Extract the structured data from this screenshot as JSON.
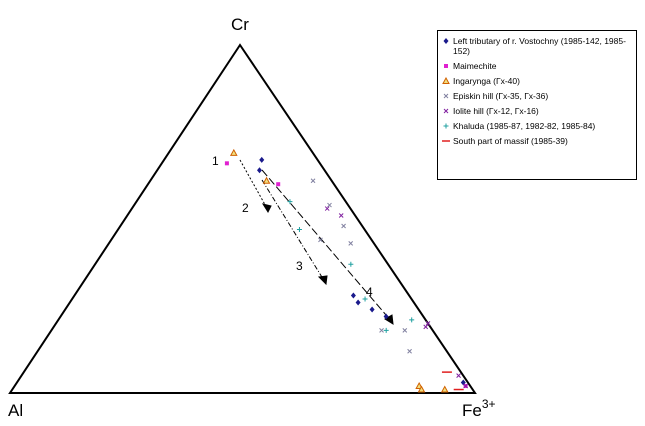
{
  "chart_data": {
    "type": "ternary",
    "vertices": {
      "top": "Cr",
      "left": "Al",
      "right": "Fe",
      "right_sup": "3+"
    },
    "annotations": [
      "1",
      "2",
      "3",
      "4"
    ],
    "series": [
      {
        "name": "Left tributary of r. Vostochny (1985-142, 1985-152)",
        "color": "#1a1a8c",
        "marker": "diamond",
        "cr": [
          67,
          64,
          28,
          26,
          24,
          22,
          3
        ],
        "al": [
          12,
          14,
          12,
          12,
          10,
          8,
          1
        ],
        "fe": [
          21,
          22,
          60,
          62,
          66,
          70,
          96
        ]
      },
      {
        "name": "Maimechite",
        "color": "#e020d0",
        "marker": "square",
        "cr": [
          66,
          60,
          2
        ],
        "al": [
          20,
          12,
          1
        ],
        "fe": [
          14,
          28,
          97
        ]
      },
      {
        "name": "Ingarynga (Гх-40)",
        "color": "#d06000",
        "marker": "triangle",
        "cr": [
          69,
          61,
          2,
          1,
          1
        ],
        "al": [
          17,
          14,
          11,
          11,
          6
        ],
        "fe": [
          14,
          25,
          87,
          88,
          93
        ]
      },
      {
        "name": "Episkin hill (Гх-35, Гх-36)",
        "color": "#8080a0",
        "marker": "x",
        "cr": [
          61,
          54,
          48,
          44,
          43,
          18,
          12,
          18
        ],
        "al": [
          4,
          4,
          4,
          11,
          5,
          11,
          8,
          6
        ],
        "fe": [
          35,
          42,
          48,
          45,
          52,
          71,
          80,
          76
        ]
      },
      {
        "name": "Iolite hill (Гх-12, Гх-16)",
        "color": "#8020a0",
        "marker": "x",
        "cr": [
          53,
          51,
          20,
          19,
          5,
          2
        ],
        "al": [
          5,
          3,
          0,
          1,
          1,
          1
        ],
        "fe": [
          42,
          46,
          80,
          80,
          94,
          97
        ]
      },
      {
        "name": "Khaluda (1985-87, 1982-82, 1985-84)",
        "color": "#20a0a0",
        "marker": "plus",
        "cr": [
          55,
          47,
          37,
          27,
          18,
          21
        ],
        "al": [
          12,
          14,
          8,
          10,
          10,
          3
        ],
        "fe": [
          33,
          39,
          55,
          63,
          72,
          76
        ]
      },
      {
        "name": "South part of massif (1985-39)",
        "color": "#e02020",
        "marker": "dash",
        "cr": [
          6,
          1
        ],
        "al": [
          3,
          3
        ],
        "fe": [
          91,
          96
        ]
      }
    ]
  }
}
